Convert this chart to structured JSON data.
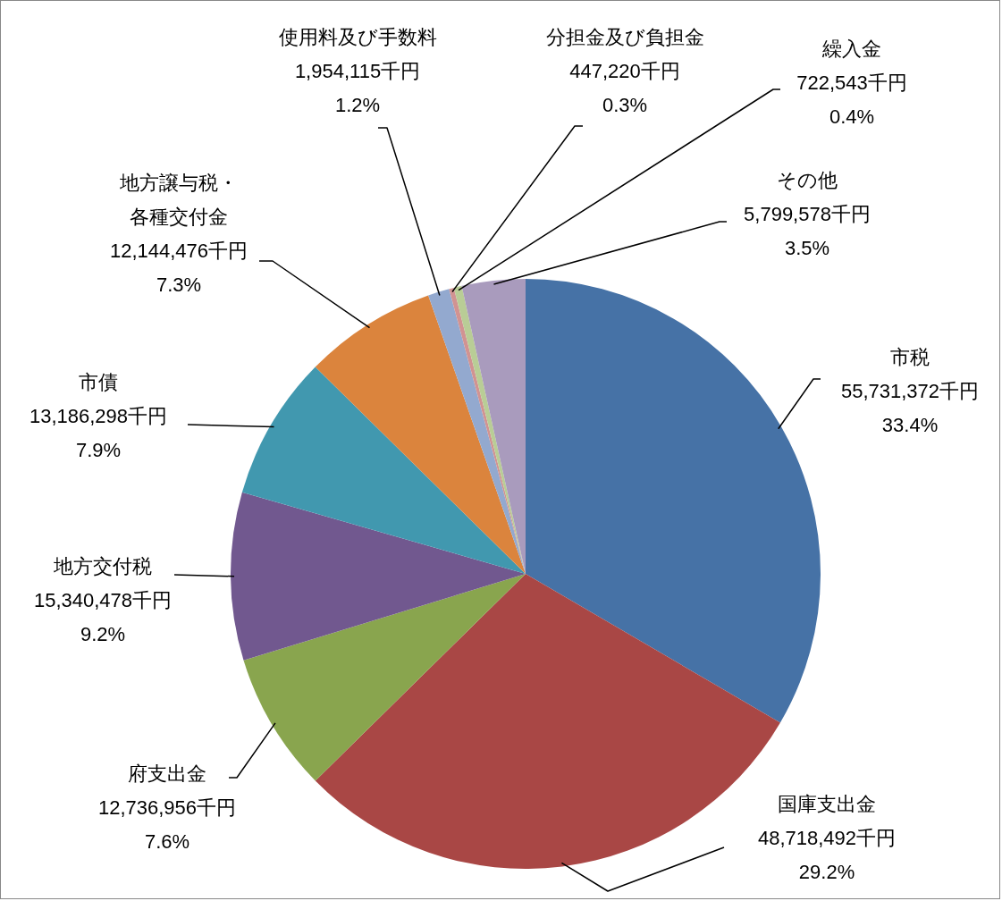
{
  "chart_data": {
    "type": "pie",
    "categories": [
      "市税",
      "国庫支出金",
      "府支出金",
      "地方交付税",
      "市債",
      "地方譲与税・各種交付金",
      "使用料及び手数料",
      "分担金及び負担金",
      "繰入金",
      "その他"
    ],
    "values": [
      55731372,
      48718492,
      12736956,
      15340478,
      13186298,
      12144476,
      1954115,
      447220,
      722543,
      5799578
    ],
    "value_labels": [
      "55,731,372千円\n33.4%",
      "48,718,492千円\n29.2%",
      "12,736,956千円\n7.6%",
      "15,340,478千円\n9.2%",
      "13,186,298千円\n7.9%",
      "12,144,476千円\n7.3%",
      "1,954,115千円\n1.2%",
      "447,220千円\n0.3%",
      "722,543千円\n0.4%",
      "5,799,578千円\n3.5%"
    ],
    "colors": [
      "#4672a6",
      "#a94745",
      "#89a54e",
      "#71588f",
      "#4198af",
      "#db843d",
      "#93a9cf",
      "#d19392",
      "#b9cd96",
      "#a99bbd"
    ]
  }
}
